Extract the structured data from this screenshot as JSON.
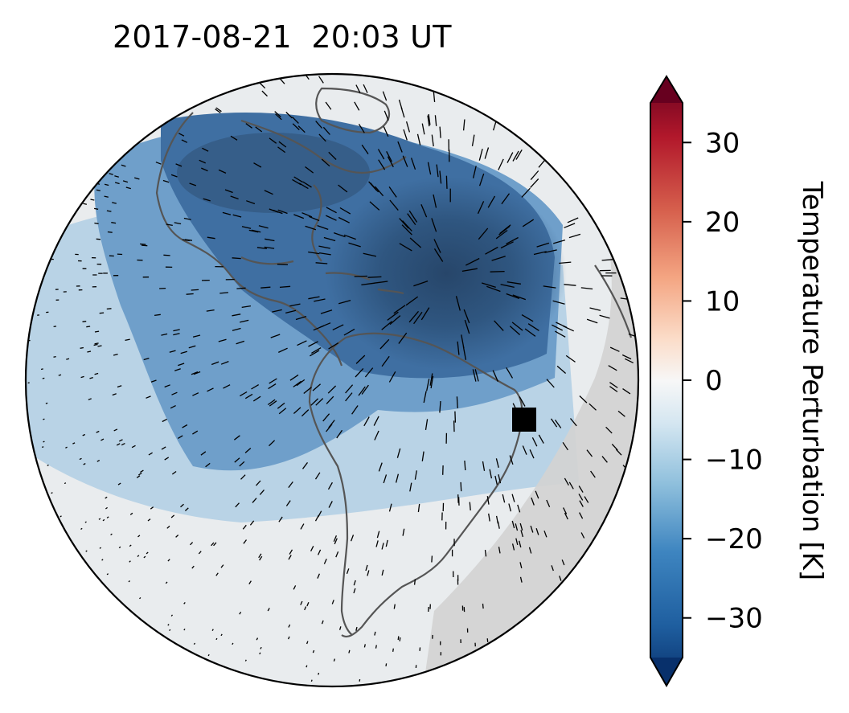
{
  "title": "2017-08-21  20:03 UT",
  "colorbar": {
    "label": "Temperature Perturbation [K]",
    "ticks": [
      {
        "value": 30,
        "label": "30"
      },
      {
        "value": 20,
        "label": "20"
      },
      {
        "value": 10,
        "label": "10"
      },
      {
        "value": 0,
        "label": "0"
      },
      {
        "value": -10,
        "label": "−10"
      },
      {
        "value": -20,
        "label": "−20"
      },
      {
        "value": -30,
        "label": "−30"
      }
    ],
    "range": [
      -35,
      35
    ],
    "colormap": "RdBu_r",
    "extend": "both"
  },
  "map": {
    "projection": "orthographic",
    "marker": "black square marker (eclipse location)",
    "colors": {
      "deep_blue": "#2c4a6b",
      "mid_blue": "#4f86bd",
      "light_blue": "#a9c9e0",
      "pale": "#e6ebee",
      "night_gray": "#d3d3d3",
      "coastline": "#555555"
    }
  }
}
